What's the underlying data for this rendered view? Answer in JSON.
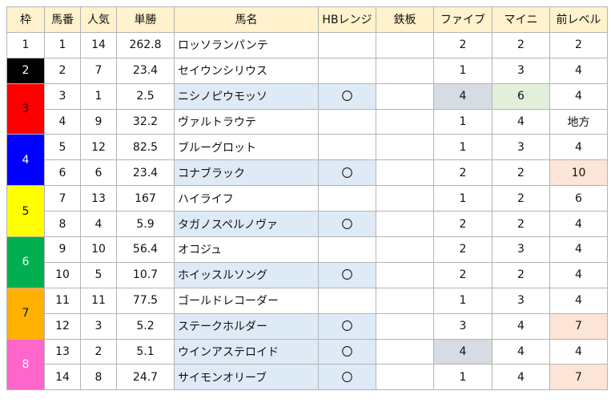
{
  "headers": [
    "枠",
    "馬番",
    "人気",
    "単勝",
    "馬名",
    "HBレンジ",
    "鉄板",
    "ファイブ",
    "マイニ",
    "前レベル"
  ],
  "colors": {
    "header_bg": "#fff2cc",
    "name_highlight": "#deeaf6",
    "gray_highlight": "#d6dce4",
    "green_highlight": "#e2efda",
    "peach_highlight": "#fce4d6",
    "grid": "#b4b4b4"
  },
  "frames": [
    {
      "label": "1",
      "bg": "#ffffff",
      "fg": "#111111",
      "span": 1
    },
    {
      "label": "2",
      "bg": "#000000",
      "fg": "#ffffff",
      "span": 1
    },
    {
      "label": "3",
      "bg": "#ff0000",
      "fg": "#111111",
      "span": 2
    },
    {
      "label": "4",
      "bg": "#0000ff",
      "fg": "#ffffff",
      "span": 2
    },
    {
      "label": "5",
      "bg": "#ffff00",
      "fg": "#111111",
      "span": 2
    },
    {
      "label": "6",
      "bg": "#00b050",
      "fg": "#ffffff",
      "span": 2
    },
    {
      "label": "7",
      "bg": "#ffb000",
      "fg": "#111111",
      "span": 2
    },
    {
      "label": "8",
      "bg": "#ff66cc",
      "fg": "#ffffff",
      "span": 2
    }
  ],
  "rows": [
    {
      "num": "1",
      "pop": "14",
      "odds": "262.8",
      "name": "ロッソランパンテ",
      "hb": "",
      "teppan": "",
      "five": "2",
      "maini": "2",
      "prev": "2",
      "hl": {}
    },
    {
      "num": "2",
      "pop": "7",
      "odds": "23.4",
      "name": "セイウンシリウス",
      "hb": "",
      "teppan": "",
      "five": "1",
      "maini": "3",
      "prev": "4",
      "hl": {}
    },
    {
      "num": "3",
      "pop": "1",
      "odds": "2.5",
      "name": "ニシノピウモッソ",
      "hb": "〇",
      "teppan": "",
      "five": "4",
      "maini": "6",
      "prev": "4",
      "hl": {
        "name": "#deeaf6",
        "hb": "#deeaf6",
        "five": "#d6dce4",
        "maini": "#e2efda"
      }
    },
    {
      "num": "4",
      "pop": "9",
      "odds": "32.2",
      "name": "ヴァルトラウテ",
      "hb": "",
      "teppan": "",
      "five": "1",
      "maini": "4",
      "prev": "地方",
      "hl": {}
    },
    {
      "num": "5",
      "pop": "12",
      "odds": "82.5",
      "name": "ブルーグロット",
      "hb": "",
      "teppan": "",
      "five": "1",
      "maini": "3",
      "prev": "4",
      "hl": {}
    },
    {
      "num": "6",
      "pop": "6",
      "odds": "23.4",
      "name": "コナブラック",
      "hb": "〇",
      "teppan": "",
      "five": "2",
      "maini": "2",
      "prev": "10",
      "hl": {
        "name": "#deeaf6",
        "hb": "#deeaf6",
        "prev": "#fce4d6"
      }
    },
    {
      "num": "7",
      "pop": "13",
      "odds": "167",
      "name": "ハイライフ",
      "hb": "",
      "teppan": "",
      "five": "1",
      "maini": "2",
      "prev": "6",
      "hl": {}
    },
    {
      "num": "8",
      "pop": "4",
      "odds": "5.9",
      "name": "タガノスペルノヴァ",
      "hb": "〇",
      "teppan": "",
      "five": "2",
      "maini": "2",
      "prev": "4",
      "hl": {
        "name": "#deeaf6",
        "hb": "#deeaf6"
      }
    },
    {
      "num": "9",
      "pop": "10",
      "odds": "56.4",
      "name": "オコジュ",
      "hb": "",
      "teppan": "",
      "five": "2",
      "maini": "3",
      "prev": "4",
      "hl": {}
    },
    {
      "num": "10",
      "pop": "5",
      "odds": "10.7",
      "name": "ホイッスルソング",
      "hb": "〇",
      "teppan": "",
      "five": "2",
      "maini": "2",
      "prev": "4",
      "hl": {
        "name": "#deeaf6",
        "hb": "#deeaf6"
      }
    },
    {
      "num": "11",
      "pop": "11",
      "odds": "77.5",
      "name": "ゴールドレコーダー",
      "hb": "",
      "teppan": "",
      "five": "1",
      "maini": "3",
      "prev": "4",
      "hl": {}
    },
    {
      "num": "12",
      "pop": "3",
      "odds": "5.2",
      "name": "ステークホルダー",
      "hb": "〇",
      "teppan": "",
      "five": "3",
      "maini": "4",
      "prev": "7",
      "hl": {
        "name": "#deeaf6",
        "hb": "#deeaf6",
        "prev": "#fce4d6"
      }
    },
    {
      "num": "13",
      "pop": "2",
      "odds": "5.1",
      "name": "ウインアステロイド",
      "hb": "〇",
      "teppan": "",
      "five": "4",
      "maini": "4",
      "prev": "4",
      "hl": {
        "name": "#deeaf6",
        "hb": "#deeaf6",
        "five": "#d6dce4"
      }
    },
    {
      "num": "14",
      "pop": "8",
      "odds": "24.7",
      "name": "サイモンオリーブ",
      "hb": "〇",
      "teppan": "",
      "five": "1",
      "maini": "4",
      "prev": "7",
      "hl": {
        "name": "#deeaf6",
        "hb": "#deeaf6",
        "prev": "#fce4d6"
      }
    }
  ]
}
